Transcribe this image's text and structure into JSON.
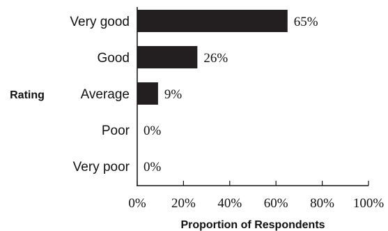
{
  "chart_data": {
    "type": "bar",
    "orientation": "horizontal",
    "categories": [
      "Very good",
      "Good",
      "Average",
      "Poor",
      "Very poor"
    ],
    "values": [
      65,
      26,
      9,
      0,
      0
    ],
    "data_labels": [
      "65%",
      "26%",
      "9%",
      "0%",
      "0%"
    ],
    "xlabel": "Proportion of Respondents",
    "ylabel": "Rating",
    "xlim": [
      0,
      100
    ],
    "x_ticks": [
      0,
      20,
      40,
      60,
      80,
      100
    ],
    "x_tick_labels": [
      "0%",
      "20%",
      "40%",
      "60%",
      "80%",
      "100%"
    ],
    "grid": false,
    "bar_color": "#231f20"
  }
}
